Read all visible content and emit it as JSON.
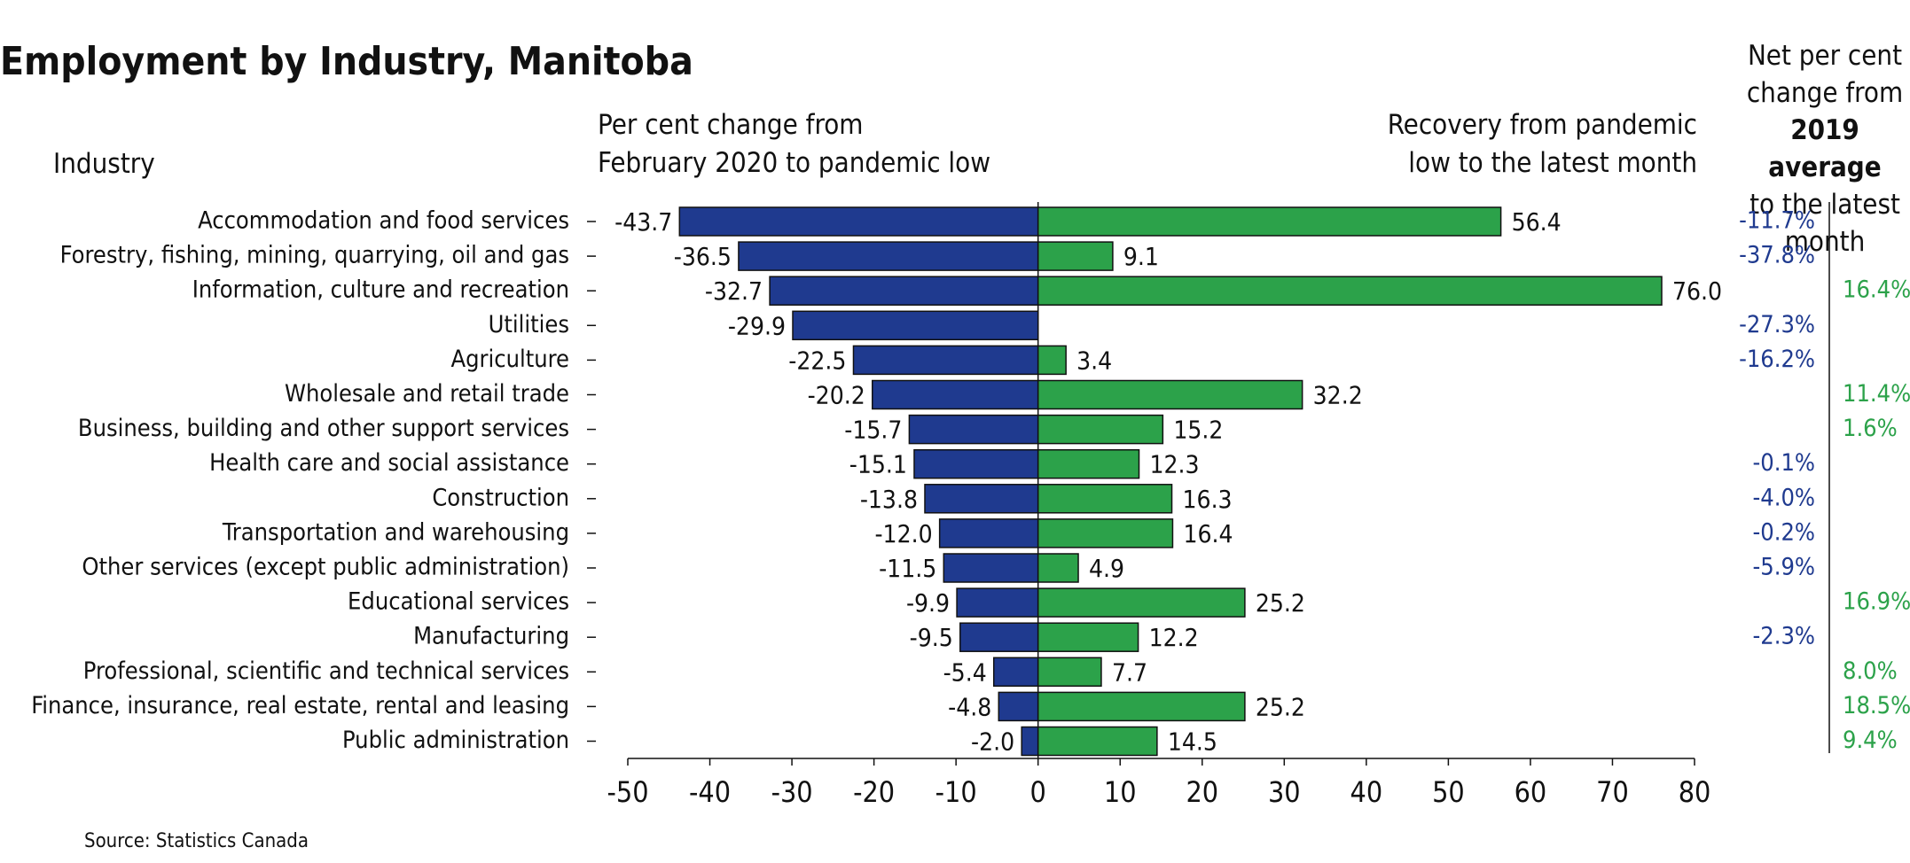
{
  "chart_data": {
    "type": "diverging-bar",
    "title": "Employment by Industry, Manitoba",
    "category_label": "Industry",
    "source": "Source: Statistics Canada",
    "categories": [
      "Accommodation and food services",
      "Forestry, fishing, mining, quarrying, oil and gas",
      "Information, culture and recreation",
      "Utilities",
      "Agriculture",
      "Wholesale and retail trade",
      "Business, building and other support services",
      "Health care and social assistance",
      "Construction",
      "Transportation and warehousing",
      "Other services (except public administration)",
      "Educational services",
      "Manufacturing",
      "Professional, scientific and technical services",
      "Finance, insurance, real estate, rental and leasing",
      "Public administration"
    ],
    "series": [
      {
        "name": "Per cent change from\nFebruary 2020 to pandemic low",
        "color": "#1f3a8f",
        "values": [
          -43.7,
          -36.5,
          -32.7,
          -29.9,
          -22.5,
          -20.2,
          -15.7,
          -15.1,
          -13.8,
          -12.0,
          -11.5,
          -9.9,
          -9.5,
          -5.4,
          -4.8,
          -2.0
        ],
        "value_labels": [
          "-43.7",
          "-36.5",
          "-32.7",
          "-29.9",
          "-22.5",
          "-20.2",
          "-15.7",
          "-15.1",
          "-13.8",
          "-12.0",
          "-11.5",
          "-9.9",
          "-9.5",
          "-5.4",
          "-4.8",
          "-2.0"
        ]
      },
      {
        "name": "Recovery from pandemic\nlow to the latest month",
        "color": "#2ca24a",
        "values": [
          56.4,
          9.1,
          76.0,
          null,
          3.4,
          32.2,
          15.2,
          12.3,
          16.3,
          16.4,
          4.9,
          25.2,
          12.2,
          7.7,
          25.2,
          14.5
        ],
        "value_labels": [
          "56.4",
          "9.1",
          "76.0",
          null,
          "3.4",
          "32.2",
          "15.2",
          "12.3",
          "16.3",
          "16.4",
          "4.9",
          "25.2",
          "12.2",
          "7.7",
          "25.2",
          "14.5"
        ]
      }
    ],
    "net_change": {
      "title_parts": [
        "Net per cent\nchange from",
        "2019 average",
        "to the latest\nmonth"
      ],
      "negative_color": "#1f3a8f",
      "positive_color": "#2ca24a",
      "values": [
        -11.7,
        -37.8,
        16.4,
        -27.3,
        -16.2,
        11.4,
        1.6,
        -0.1,
        -4.0,
        -0.2,
        -5.9,
        16.9,
        -2.3,
        8.0,
        18.5,
        9.4
      ],
      "value_labels": [
        "-11.7%",
        "-37.8%",
        "16.4%",
        "-27.3%",
        "-16.2%",
        "11.4%",
        "1.6%",
        "-0.1%",
        "-4.0%",
        "-0.2%",
        "-5.9%",
        "16.9%",
        "-2.3%",
        "8.0%",
        "18.5%",
        "9.4%"
      ]
    },
    "xlim": [
      -50,
      80
    ],
    "xticks": [
      -50,
      -40,
      -30,
      -20,
      -10,
      0,
      10,
      20,
      30,
      40,
      50,
      60,
      70,
      80
    ]
  }
}
